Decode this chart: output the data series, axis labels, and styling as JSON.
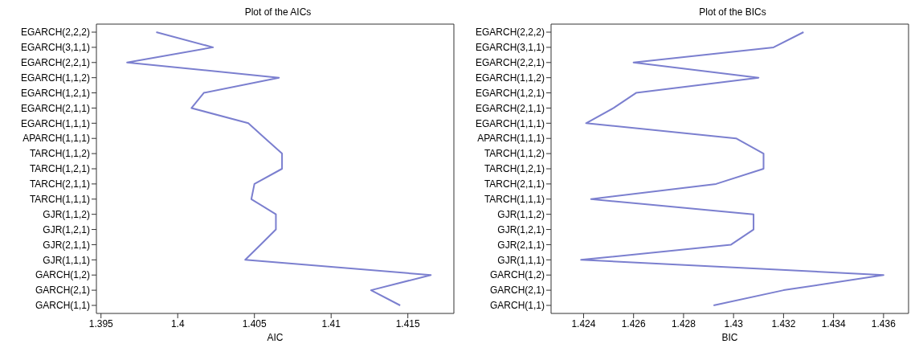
{
  "chart_data": [
    {
      "type": "line",
      "title": "Plot of the AICs",
      "xlabel": "AIC",
      "orientation": "horizontal",
      "categories": [
        "EGARCH(2,2,2)",
        "EGARCH(3,1,1)",
        "EGARCH(2,2,1)",
        "EGARCH(1,1,2)",
        "EGARCH(1,2,1)",
        "EGARCH(2,1,1)",
        "EGARCH(1,1,1)",
        "APARCH(1,1,1)",
        "TARCH(1,1,2)",
        "TARCH(1,2,1)",
        "TARCH(2,1,1)",
        "TARCH(1,1,1)",
        "GJR(1,1,2)",
        "GJR(1,2,1)",
        "GJR(2,1,1)",
        "GJR(1,1,1)",
        "GARCH(1,2)",
        "GARCH(2,1)",
        "GARCH(1,1)"
      ],
      "series": [
        {
          "color": "#7b7fcf",
          "values": [
            1.3986,
            1.4023,
            1.3967,
            1.4066,
            1.4017,
            1.4009,
            1.4046,
            1.4057,
            1.4068,
            1.4068,
            1.405,
            1.4048,
            1.4064,
            1.4064,
            1.4054,
            1.4044,
            1.4165,
            1.4126,
            1.4145
          ]
        }
      ],
      "xlim": [
        1.3947,
        1.418
      ],
      "xticks": [
        1.395,
        1.4,
        1.405,
        1.41,
        1.415
      ]
    },
    {
      "type": "line",
      "title": "Plot of the BICs",
      "xlabel": "BIC",
      "orientation": "horizontal",
      "categories": [
        "EGARCH(2,2,2)",
        "EGARCH(3,1,1)",
        "EGARCH(2,2,1)",
        "EGARCH(1,1,2)",
        "EGARCH(1,2,1)",
        "EGARCH(2,1,1)",
        "EGARCH(1,1,1)",
        "APARCH(1,1,1)",
        "TARCH(1,1,2)",
        "TARCH(1,2,1)",
        "TARCH(2,1,1)",
        "TARCH(1,1,1)",
        "GJR(1,1,2)",
        "GJR(1,2,1)",
        "GJR(2,1,1)",
        "GJR(1,1,1)",
        "GARCH(1,2)",
        "GARCH(2,1)",
        "GARCH(1,1)"
      ],
      "series": [
        {
          "color": "#7b7fcf",
          "values": [
            1.4328,
            1.4316,
            1.426,
            1.431,
            1.4261,
            1.4252,
            1.4241,
            1.4301,
            1.4312,
            1.4312,
            1.4293,
            1.4243,
            1.4308,
            1.4308,
            1.4299,
            1.4239,
            1.436,
            1.432,
            1.4292
          ]
        }
      ],
      "xlim": [
        1.4227,
        1.437
      ],
      "xticks": [
        1.424,
        1.426,
        1.428,
        1.43,
        1.432,
        1.434,
        1.436
      ]
    }
  ]
}
